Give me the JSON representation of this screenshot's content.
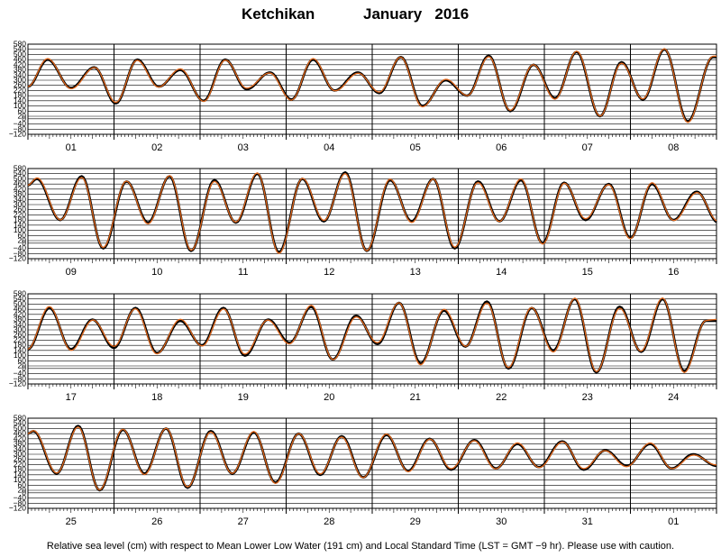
{
  "title": {
    "location": "Ketchikan",
    "month_year": "January   2016"
  },
  "caption": "Relative sea level (cm) with respect to Mean Lower Low Water (191 cm) and Local Standard Time (LST = GMT −9 hr). Please use with caution.",
  "colors": {
    "observed": "#000000",
    "predicted": "#e0661a",
    "grid": "#000000",
    "background": "#ffffff"
  },
  "chart_data": {
    "type": "line",
    "y_unit": "cm",
    "ylim": [
      -120,
      580
    ],
    "y_ticks": [
      -120,
      -80,
      -40,
      0,
      20,
      60,
      100,
      140,
      180,
      220,
      260,
      300,
      340,
      380,
      420,
      460,
      500,
      540,
      580
    ],
    "y_tick_labels": [
      "−120",
      "−80",
      "−40",
      "0",
      "20",
      "60",
      "100",
      "140",
      "180",
      "220",
      "260",
      "300",
      "340",
      "380",
      "420",
      "460",
      "500",
      "540",
      "580"
    ],
    "grid": true,
    "series": [
      {
        "name": "",
        "role": "observed",
        "color": "#000000"
      },
      {
        "name": "",
        "role": "predicted",
        "color": "#e0661a"
      }
    ],
    "panels": [
      {
        "days": [
          "01",
          "02",
          "03",
          "04",
          "05",
          "06",
          "07",
          "08"
        ],
        "start_hour": 12.0,
        "start_level": 250,
        "extremes": [
          {
            "t": 17.5,
            "v": 460
          },
          {
            "t": 24.0,
            "v": 240
          },
          {
            "t": 30.5,
            "v": 400
          },
          {
            "t": 36.5,
            "v": 120
          },
          {
            "t": 42.5,
            "v": 460
          },
          {
            "t": 48.5,
            "v": 250
          },
          {
            "t": 54.5,
            "v": 380
          },
          {
            "t": 61.0,
            "v": 140
          },
          {
            "t": 67.0,
            "v": 460
          },
          {
            "t": 73.0,
            "v": 230
          },
          {
            "t": 79.5,
            "v": 360
          },
          {
            "t": 85.5,
            "v": 150
          },
          {
            "t": 91.5,
            "v": 460
          },
          {
            "t": 97.5,
            "v": 220
          },
          {
            "t": 104.0,
            "v": 360
          },
          {
            "t": 110.0,
            "v": 200
          },
          {
            "t": 116.0,
            "v": 480
          },
          {
            "t": 122.0,
            "v": 100
          },
          {
            "t": 128.5,
            "v": 300
          },
          {
            "t": 134.5,
            "v": 180
          },
          {
            "t": 140.5,
            "v": 490
          },
          {
            "t": 146.5,
            "v": 60
          },
          {
            "t": 153.0,
            "v": 420
          },
          {
            "t": 159.0,
            "v": 160
          },
          {
            "t": 165.0,
            "v": 520
          },
          {
            "t": 171.5,
            "v": 20
          },
          {
            "t": 177.5,
            "v": 440
          },
          {
            "t": 183.5,
            "v": 150
          },
          {
            "t": 189.5,
            "v": 540
          },
          {
            "t": 196.0,
            "v": -20
          },
          {
            "t": 203.0,
            "v": 480
          }
        ],
        "predicted_offset": [
          0,
          8
        ]
      },
      {
        "days": [
          "09",
          "10",
          "11",
          "12",
          "13",
          "14",
          "15",
          "16"
        ],
        "start_hour": 192.0,
        "start_level": 450,
        "extremes": [
          {
            "t": 194.5,
            "v": 500
          },
          {
            "t": 201.0,
            "v": 180
          },
          {
            "t": 207.0,
            "v": 520
          },
          {
            "t": 213.0,
            "v": -40
          },
          {
            "t": 219.5,
            "v": 480
          },
          {
            "t": 225.5,
            "v": 160
          },
          {
            "t": 231.5,
            "v": 520
          },
          {
            "t": 237.5,
            "v": -60
          },
          {
            "t": 244.0,
            "v": 490
          },
          {
            "t": 250.0,
            "v": 160
          },
          {
            "t": 256.0,
            "v": 540
          },
          {
            "t": 262.0,
            "v": -70
          },
          {
            "t": 268.5,
            "v": 500
          },
          {
            "t": 274.5,
            "v": 170
          },
          {
            "t": 280.5,
            "v": 550
          },
          {
            "t": 286.5,
            "v": -60
          },
          {
            "t": 293.0,
            "v": 490
          },
          {
            "t": 299.0,
            "v": 170
          },
          {
            "t": 305.0,
            "v": 500
          },
          {
            "t": 311.0,
            "v": -40
          },
          {
            "t": 317.5,
            "v": 480
          },
          {
            "t": 323.5,
            "v": 170
          },
          {
            "t": 329.5,
            "v": 490
          },
          {
            "t": 335.5,
            "v": 0
          },
          {
            "t": 341.5,
            "v": 470
          },
          {
            "t": 347.5,
            "v": 180
          },
          {
            "t": 354.0,
            "v": 460
          },
          {
            "t": 360.0,
            "v": 40
          },
          {
            "t": 366.0,
            "v": 460
          },
          {
            "t": 372.0,
            "v": 180
          },
          {
            "t": 378.5,
            "v": 400
          },
          {
            "t": 384.5,
            "v": 160
          }
        ],
        "predicted_offset": [
          6,
          10
        ]
      },
      {
        "days": [
          "17",
          "18",
          "19",
          "20",
          "21",
          "22",
          "23",
          "24"
        ],
        "start_hour": 384.0,
        "start_level": 150,
        "extremes": [
          {
            "t": 390.0,
            "v": 470
          },
          {
            "t": 396.0,
            "v": 150
          },
          {
            "t": 402.0,
            "v": 380
          },
          {
            "t": 408.0,
            "v": 160
          },
          {
            "t": 414.0,
            "v": 470
          },
          {
            "t": 420.0,
            "v": 120
          },
          {
            "t": 426.5,
            "v": 370
          },
          {
            "t": 432.5,
            "v": 180
          },
          {
            "t": 438.5,
            "v": 470
          },
          {
            "t": 444.5,
            "v": 100
          },
          {
            "t": 451.0,
            "v": 380
          },
          {
            "t": 457.0,
            "v": 200
          },
          {
            "t": 463.0,
            "v": 480
          },
          {
            "t": 469.0,
            "v": 70
          },
          {
            "t": 475.5,
            "v": 410
          },
          {
            "t": 481.5,
            "v": 190
          },
          {
            "t": 487.5,
            "v": 510
          },
          {
            "t": 493.5,
            "v": 40
          },
          {
            "t": 500.0,
            "v": 450
          },
          {
            "t": 506.0,
            "v": 170
          },
          {
            "t": 512.0,
            "v": 520
          },
          {
            "t": 518.0,
            "v": 0
          },
          {
            "t": 524.5,
            "v": 470
          },
          {
            "t": 530.5,
            "v": 140
          },
          {
            "t": 536.5,
            "v": 540
          },
          {
            "t": 542.5,
            "v": -30
          },
          {
            "t": 549.0,
            "v": 480
          },
          {
            "t": 555.0,
            "v": 130
          },
          {
            "t": 561.0,
            "v": 540
          },
          {
            "t": 567.0,
            "v": -20
          },
          {
            "t": 573.0,
            "v": 370
          }
        ],
        "predicted_offset": [
          6,
          12
        ]
      },
      {
        "days": [
          "25",
          "26",
          "27",
          "28",
          "29",
          "30",
          "31",
          "01"
        ],
        "start_hour": 576.0,
        "start_level": 460,
        "extremes": [
          {
            "t": 577.5,
            "v": 480
          },
          {
            "t": 584.0,
            "v": 150
          },
          {
            "t": 590.0,
            "v": 520
          },
          {
            "t": 596.0,
            "v": 20
          },
          {
            "t": 602.5,
            "v": 490
          },
          {
            "t": 608.5,
            "v": 150
          },
          {
            "t": 614.5,
            "v": 500
          },
          {
            "t": 620.5,
            "v": 40
          },
          {
            "t": 627.0,
            "v": 480
          },
          {
            "t": 633.0,
            "v": 150
          },
          {
            "t": 639.0,
            "v": 470
          },
          {
            "t": 645.0,
            "v": 80
          },
          {
            "t": 651.5,
            "v": 460
          },
          {
            "t": 657.5,
            "v": 140
          },
          {
            "t": 663.5,
            "v": 440
          },
          {
            "t": 669.5,
            "v": 120
          },
          {
            "t": 676.0,
            "v": 450
          },
          {
            "t": 682.0,
            "v": 170
          },
          {
            "t": 688.0,
            "v": 420
          },
          {
            "t": 694.0,
            "v": 180
          },
          {
            "t": 700.5,
            "v": 410
          },
          {
            "t": 706.5,
            "v": 190
          },
          {
            "t": 712.5,
            "v": 380
          },
          {
            "t": 718.5,
            "v": 200
          },
          {
            "t": 725.0,
            "v": 400
          },
          {
            "t": 731.0,
            "v": 180
          },
          {
            "t": 737.0,
            "v": 330
          },
          {
            "t": 743.0,
            "v": 210
          },
          {
            "t": 749.5,
            "v": 380
          },
          {
            "t": 755.5,
            "v": 190
          },
          {
            "t": 761.5,
            "v": 300
          },
          {
            "t": 768.0,
            "v": 210
          }
        ],
        "predicted_offset": [
          -4,
          8
        ]
      }
    ]
  }
}
